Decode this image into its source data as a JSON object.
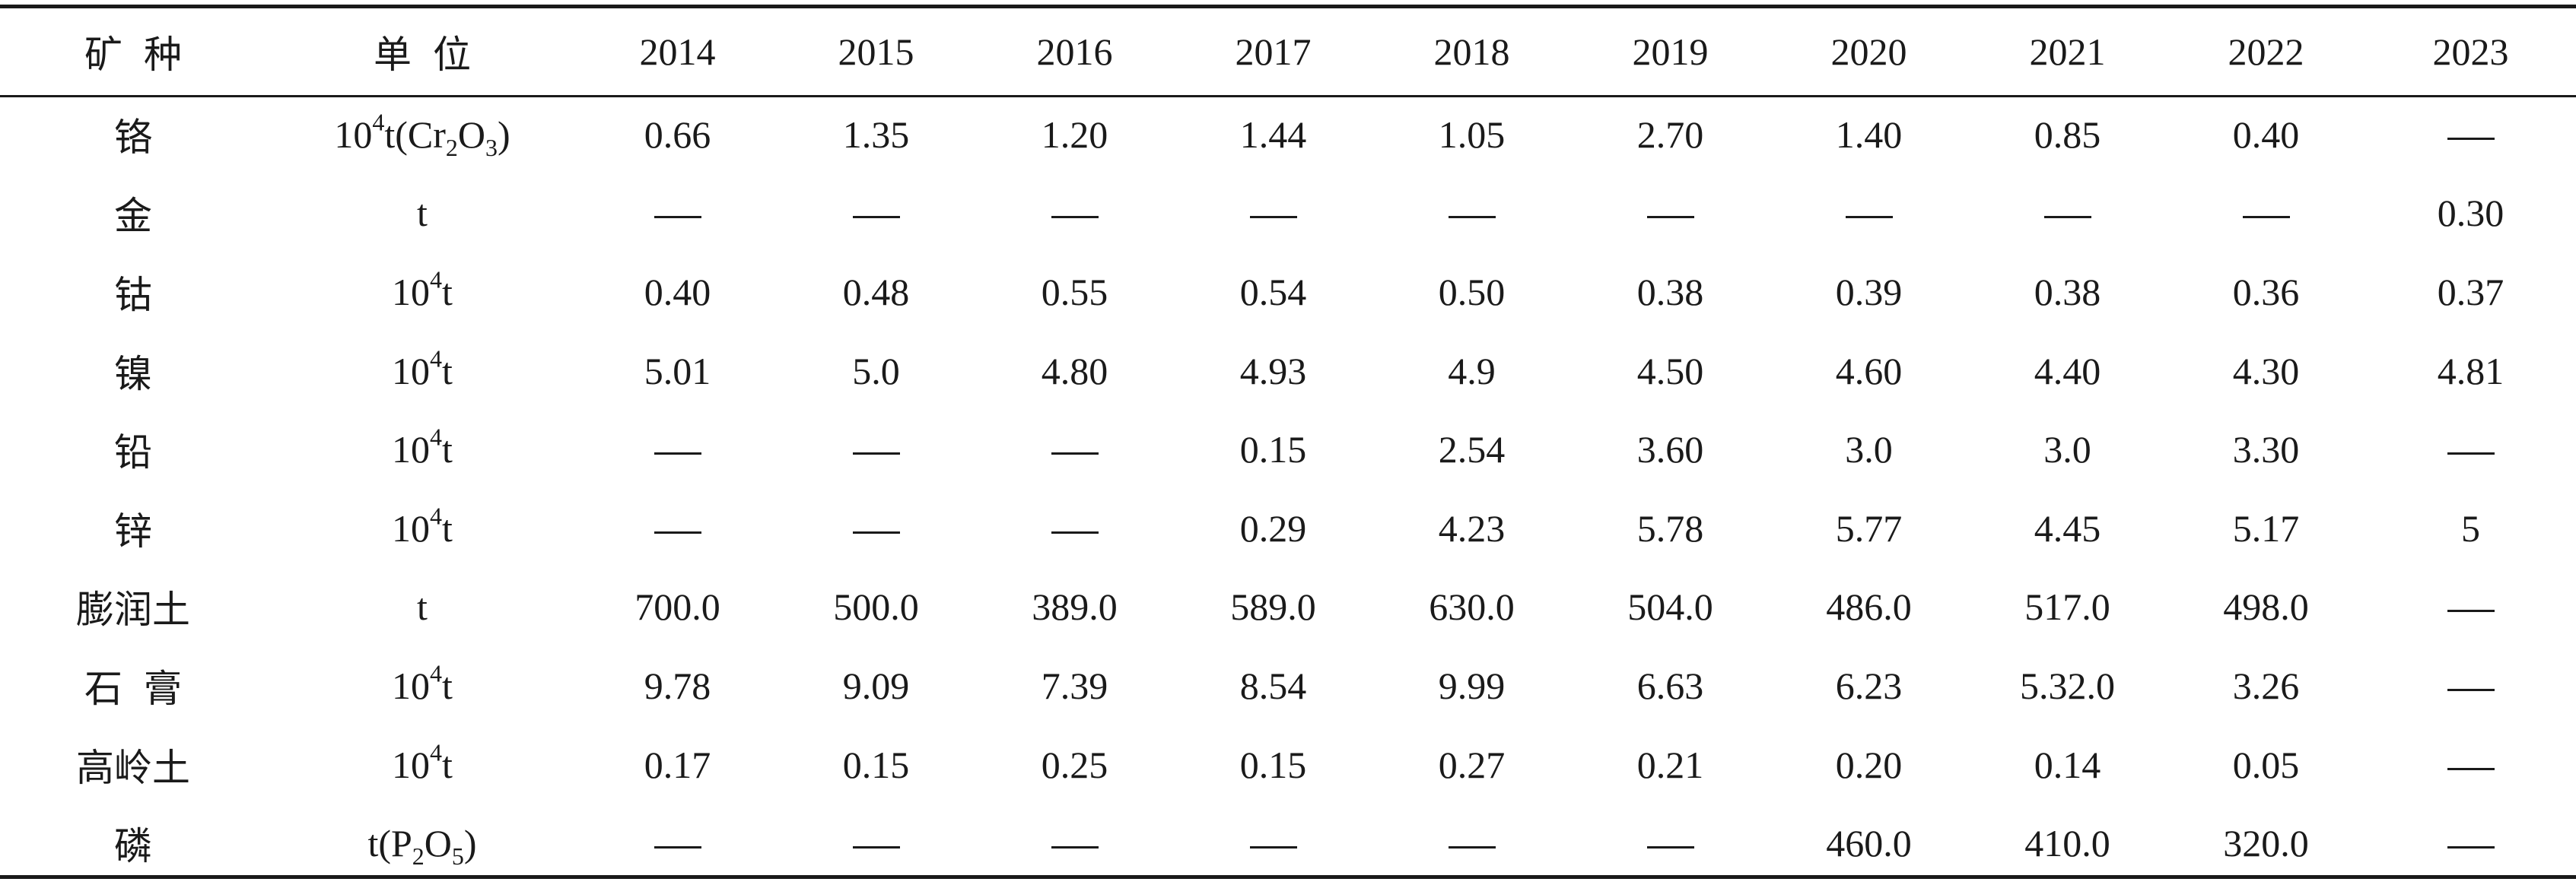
{
  "header": {
    "mineral": "矿种",
    "unit": "单位",
    "years": [
      "2014",
      "2015",
      "2016",
      "2017",
      "2018",
      "2019",
      "2020",
      "2021",
      "2022",
      "2023"
    ]
  },
  "rows": [
    {
      "mineral": "铬",
      "unit": {
        "base": "10",
        "sup": "4",
        "rest": "t(Cr",
        "sub1": "2",
        "mid": "O",
        "sub2": "3",
        "tail": ")"
      },
      "values": [
        "0.66",
        "1.35",
        "1.20",
        "1.44",
        "1.05",
        "2.70",
        "1.40",
        "0.85",
        "0.40",
        "—"
      ]
    },
    {
      "mineral": "金",
      "unit": {
        "base": "t"
      },
      "values": [
        "—",
        "—",
        "—",
        "—",
        "—",
        "—",
        "—",
        "—",
        "—",
        "0.30"
      ]
    },
    {
      "mineral": "钴",
      "unit": {
        "base": "10",
        "sup": "4",
        "rest": "t"
      },
      "values": [
        "0.40",
        "0.48",
        "0.55",
        "0.54",
        "0.50",
        "0.38",
        "0.39",
        "0.38",
        "0.36",
        "0.37"
      ]
    },
    {
      "mineral": "镍",
      "unit": {
        "base": "10",
        "sup": "4",
        "rest": "t"
      },
      "values": [
        "5.01",
        "5.0",
        "4.80",
        "4.93",
        "4.9",
        "4.50",
        "4.60",
        "4.40",
        "4.30",
        "4.81"
      ]
    },
    {
      "mineral": "铅",
      "unit": {
        "base": "10",
        "sup": "4",
        "rest": "t"
      },
      "values": [
        "—",
        "—",
        "—",
        "0.15",
        "2.54",
        "3.60",
        "3.0",
        "3.0",
        "3.30",
        "—"
      ]
    },
    {
      "mineral": "锌",
      "unit": {
        "base": "10",
        "sup": "4",
        "rest": "t"
      },
      "values": [
        "—",
        "—",
        "—",
        "0.29",
        "4.23",
        "5.78",
        "5.77",
        "4.45",
        "5.17",
        "5"
      ]
    },
    {
      "mineral": "膨润土",
      "unit": {
        "base": "t"
      },
      "values": [
        "700.0",
        "500.0",
        "389.0",
        "589.0",
        "630.0",
        "504.0",
        "486.0",
        "517.0",
        "498.0",
        "—"
      ]
    },
    {
      "mineral": "石膏",
      "unit": {
        "base": "10",
        "sup": "4",
        "rest": "t"
      },
      "values": [
        "9.78",
        "9.09",
        "7.39",
        "8.54",
        "9.99",
        "6.63",
        "6.23",
        "5.32.0",
        "3.26",
        "—"
      ]
    },
    {
      "mineral": "高岭土",
      "unit": {
        "base": "10",
        "sup": "4",
        "rest": "t"
      },
      "values": [
        "0.17",
        "0.15",
        "0.25",
        "0.15",
        "0.27",
        "0.21",
        "0.20",
        "0.14",
        "0.05",
        "—"
      ]
    },
    {
      "mineral": "磷",
      "unit": {
        "base": "t(P",
        "sub1": "2",
        "mid": "O",
        "sub2": "5",
        "tail": ")"
      },
      "values": [
        "—",
        "—",
        "—",
        "—",
        "—",
        "—",
        "460.0",
        "410.0",
        "320.0",
        "—"
      ]
    }
  ]
}
